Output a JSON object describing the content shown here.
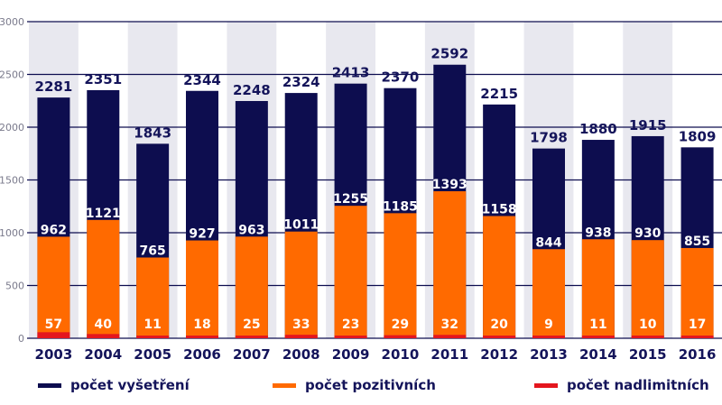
{
  "chart_data": {
    "type": "bar",
    "stacked": false,
    "categories": [
      "2003",
      "2004",
      "2005",
      "2006",
      "2007",
      "2008",
      "2009",
      "2010",
      "2011",
      "2012",
      "2013",
      "2014",
      "2015",
      "2016"
    ],
    "series": [
      {
        "name": "počet vyšetření",
        "color": "#0d0d4f",
        "values": [
          2281,
          2351,
          1843,
          2344,
          2248,
          2324,
          2413,
          2370,
          2592,
          2215,
          1798,
          1880,
          1915,
          1809
        ]
      },
      {
        "name": "počet pozitivních",
        "color": "#ff6a00",
        "values": [
          962,
          1121,
          765,
          927,
          963,
          1011,
          1255,
          1185,
          1393,
          1158,
          844,
          938,
          930,
          855
        ]
      },
      {
        "name": "počet nadlimitních",
        "color": "#e4161e",
        "values": [
          57,
          40,
          11,
          18,
          25,
          33,
          23,
          29,
          32,
          20,
          9,
          11,
          10,
          17
        ]
      }
    ],
    "yticks": [
      "0",
      "500",
      "1000",
      "1500",
      "2000",
      "2500",
      "3000"
    ],
    "ylim": [
      0,
      3000
    ],
    "grid": true,
    "legend_position": "bottom"
  },
  "legend": [
    {
      "label": "počet vyšetření",
      "color": "#0d0d4f"
    },
    {
      "label": "počet pozitivních",
      "color": "#ff6a00"
    },
    {
      "label": "počet nadlimitních",
      "color": "#e4161e"
    }
  ]
}
